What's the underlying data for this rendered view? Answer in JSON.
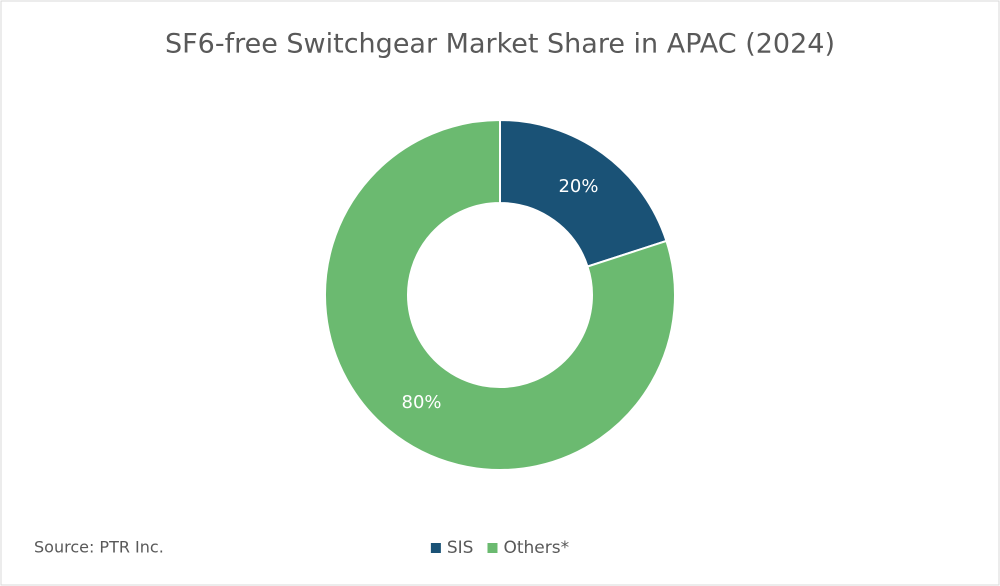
{
  "chart_data": {
    "type": "donut",
    "title": "SF6-free Switchgear Market Share in APAC (2024)",
    "categories": [
      "SIS",
      "Others*"
    ],
    "values": [
      20,
      80
    ],
    "value_labels": [
      "20%",
      "80%"
    ],
    "colors": [
      "#1a5276",
      "#6bba70"
    ],
    "source": "Source: PTR Inc.",
    "legend": "bottom"
  }
}
